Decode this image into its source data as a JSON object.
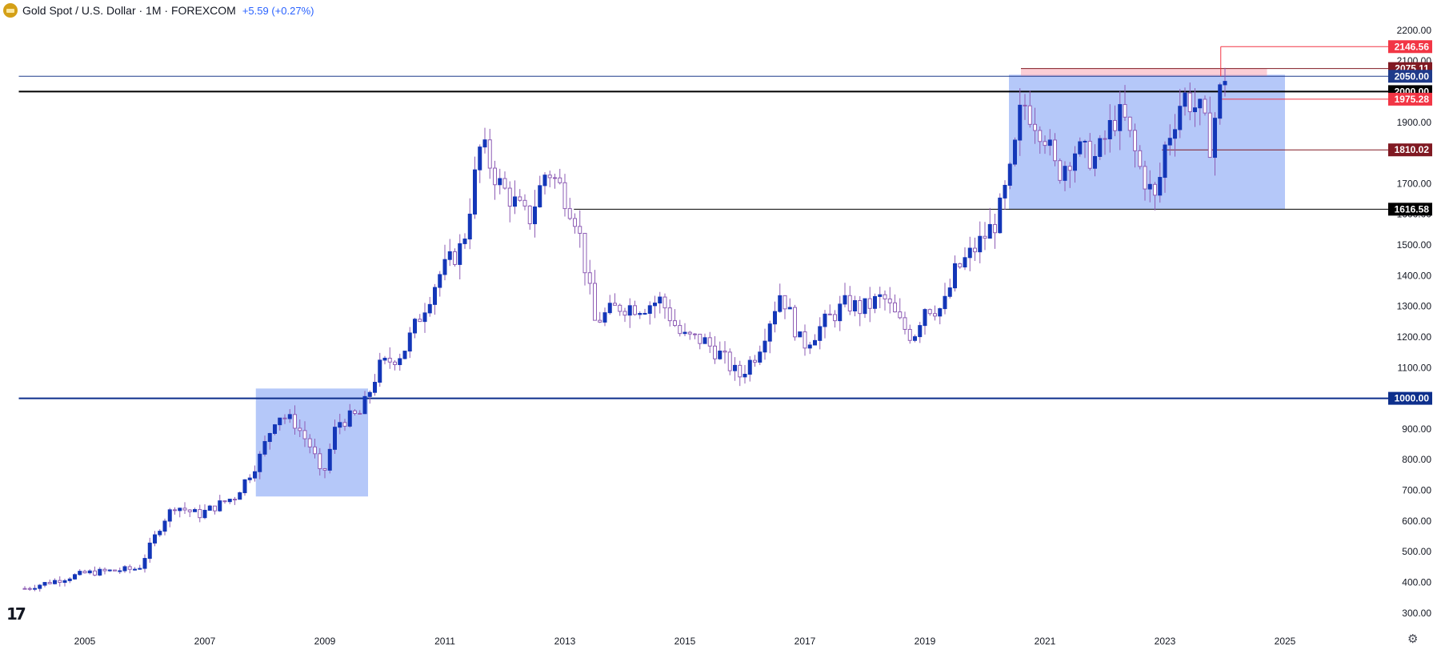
{
  "header": {
    "title": "Gold Spot / U.S. Dollar · 1M · FOREXCOM",
    "change": "+5.59 (+0.27%)"
  },
  "chart_data": {
    "type": "candlestick",
    "ylim": [
      250,
      2220
    ],
    "xlim": [
      2003.9,
      2026.2
    ],
    "y_ticks": [
      300,
      400,
      500,
      600,
      700,
      800,
      900,
      1000,
      1100,
      1200,
      1300,
      1400,
      1500,
      1600,
      1700,
      1800,
      1900,
      2000,
      2100,
      2200
    ],
    "x_ticks": [
      "2005",
      "2007",
      "2009",
      "2011",
      "2013",
      "2015",
      "2017",
      "2019",
      "2021",
      "2023",
      "2025"
    ],
    "x_tick_years": [
      2005,
      2007,
      2009,
      2011,
      2013,
      2015,
      2017,
      2019,
      2021,
      2023,
      2025
    ],
    "y_label_suffix": ".00",
    "price_levels": [
      {
        "value": 2146.56,
        "label": "2146.56",
        "color": "#f23645",
        "x_from": 2023.93
      },
      {
        "value": 2075.11,
        "label": "2075.11",
        "color": "#801922",
        "x_from": 2020.6
      },
      {
        "value": 2050.0,
        "label": "2050.00",
        "color": "#1e3a8a",
        "x_from": 2003.9
      },
      {
        "value": 2000.0,
        "label": "2000.00",
        "color": "#000000",
        "x_from": 2003.9
      },
      {
        "value": 1975.28,
        "label": "1975.28",
        "color": "#f23645",
        "x_from": 2023.95
      },
      {
        "value": 1810.02,
        "label": "1810.02",
        "color": "#801922",
        "x_from": 2022.95
      },
      {
        "value": 1616.58,
        "label": "1616.58",
        "color": "#000000",
        "x_from": 2013.15
      },
      {
        "value": 1000.0,
        "label": "1000.00",
        "color": "#0d2f8c",
        "x_from": 2003.9
      }
    ],
    "zones": [
      {
        "x0": 2007.85,
        "x1": 2009.72,
        "y0": 680,
        "y1": 1032
      },
      {
        "x0": 2020.4,
        "x1": 2025.0,
        "y0": 1616,
        "y1": 2055
      }
    ],
    "pink_zone": {
      "x0": 2020.6,
      "x1": 2024.7,
      "y0": 2050,
      "y1": 2075
    },
    "anchors": [
      [
        2004.0,
        380
      ],
      [
        2005.0,
        430
      ],
      [
        2005.9,
        445
      ],
      [
        2006.3,
        600
      ],
      [
        2006.5,
        650
      ],
      [
        2006.9,
        620
      ],
      [
        2007.5,
        680
      ],
      [
        2007.9,
        800
      ],
      [
        2008.2,
        950
      ],
      [
        2008.5,
        920
      ],
      [
        2008.8,
        830
      ],
      [
        2008.95,
        730
      ],
      [
        2009.2,
        920
      ],
      [
        2009.6,
        950
      ],
      [
        2009.9,
        1100
      ],
      [
        2010.3,
        1150
      ],
      [
        2010.9,
        1400
      ],
      [
        2011.3,
        1500
      ],
      [
        2011.6,
        1830
      ],
      [
        2011.9,
        1700
      ],
      [
        2012.4,
        1580
      ],
      [
        2012.7,
        1750
      ],
      [
        2012.95,
        1680
      ],
      [
        2013.2,
        1580
      ],
      [
        2013.5,
        1250
      ],
      [
        2013.9,
        1300
      ],
      [
        2014.3,
        1300
      ],
      [
        2014.6,
        1320
      ],
      [
        2014.95,
        1200
      ],
      [
        2015.3,
        1190
      ],
      [
        2015.6,
        1140
      ],
      [
        2015.9,
        1070
      ],
      [
        2016.2,
        1150
      ],
      [
        2016.6,
        1350
      ],
      [
        2016.95,
        1170
      ],
      [
        2017.4,
        1260
      ],
      [
        2017.7,
        1310
      ],
      [
        2017.95,
        1290
      ],
      [
        2018.3,
        1330
      ],
      [
        2018.6,
        1240
      ],
      [
        2018.8,
        1200
      ],
      [
        2019.0,
        1300
      ],
      [
        2019.3,
        1290
      ],
      [
        2019.5,
        1410
      ],
      [
        2019.8,
        1480
      ],
      [
        2020.2,
        1580
      ],
      [
        2020.45,
        1750
      ],
      [
        2020.62,
        1970
      ],
      [
        2021.0,
        1860
      ],
      [
        2021.2,
        1730
      ],
      [
        2021.5,
        1810
      ],
      [
        2021.85,
        1780
      ],
      [
        2022.15,
        1910
      ],
      [
        2022.3,
        1920
      ],
      [
        2022.6,
        1740
      ],
      [
        2022.85,
        1640
      ],
      [
        2023.0,
        1820
      ],
      [
        2023.3,
        1990
      ],
      [
        2023.6,
        1930
      ],
      [
        2023.75,
        1830
      ],
      [
        2023.9,
        1985
      ],
      [
        2024.0,
        2055
      ]
    ]
  }
}
